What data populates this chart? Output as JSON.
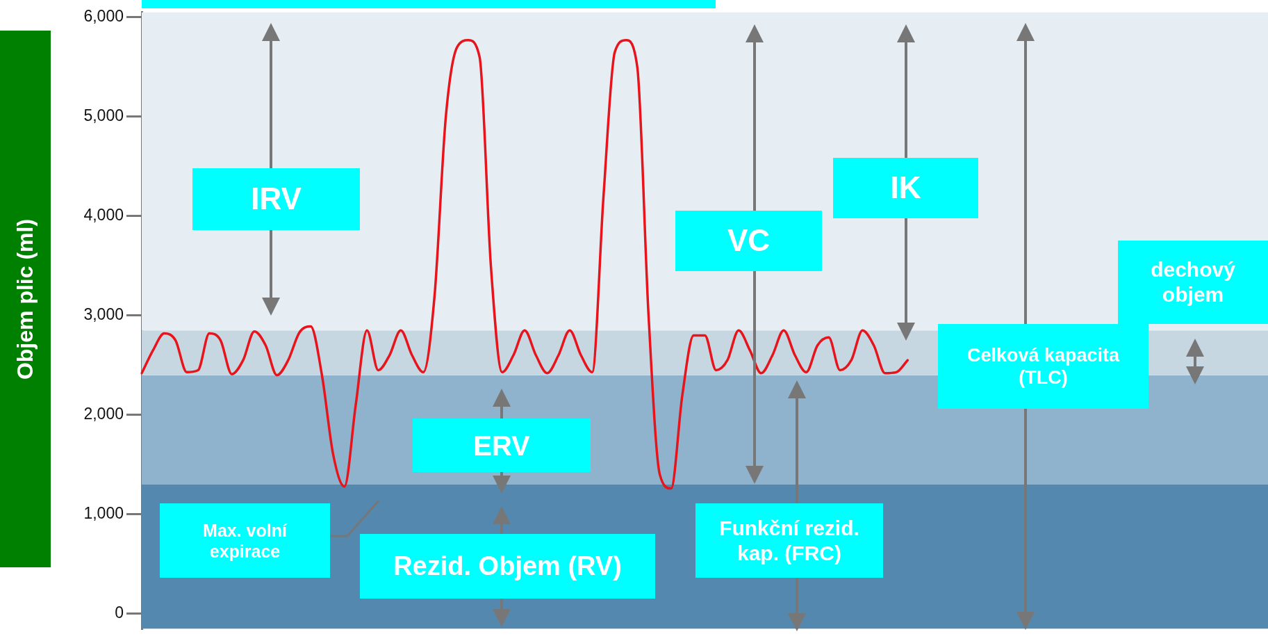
{
  "chart_data": {
    "type": "line",
    "ylabel": "Objem plic (ml)",
    "categories": [
      null,
      null,
      null,
      null,
      null,
      null,
      null,
      null,
      null,
      null,
      null,
      null,
      null,
      null,
      null,
      null,
      null,
      null,
      null,
      null,
      null,
      null,
      null,
      null,
      null,
      null,
      null,
      null,
      null,
      null,
      null,
      null,
      null,
      null,
      null,
      null,
      null,
      null,
      null,
      null,
      null,
      null,
      null,
      null,
      null,
      null,
      null,
      null,
      null,
      null,
      null,
      null,
      null,
      null,
      null,
      null,
      null,
      null,
      null,
      null,
      null,
      null,
      null,
      null,
      null,
      null,
      null,
      null,
      null,
      null,
      null,
      null,
      null,
      null,
      null,
      null,
      null,
      null,
      null,
      null,
      null,
      null,
      null,
      null,
      null,
      null,
      null,
      null,
      null,
      null,
      null,
      null,
      null,
      null,
      null,
      null,
      null,
      null,
      null,
      null,
      null
    ],
    "series": [
      {
        "color": "#e8141b",
        "values": [
          2420,
          2650,
          2820,
          2750,
          2430,
          2450,
          2820,
          2750,
          2410,
          2550,
          2840,
          2700,
          2400,
          2550,
          2830,
          2890,
          2400,
          1600,
          1280,
          2100,
          2850,
          2450,
          2600,
          2850,
          2600,
          2430,
          3200,
          5000,
          5700,
          5770,
          5600,
          3500,
          2430,
          2600,
          2850,
          2600,
          2420,
          2600,
          2850,
          2600,
          2430,
          4200,
          5650,
          5770,
          5500,
          3000,
          1400,
          1260,
          2200,
          2800,
          2800,
          2450,
          2550,
          2850,
          2650,
          2420,
          2600,
          2850,
          2600,
          2430,
          2700,
          2780,
          2450,
          2550,
          2850,
          2700,
          2420,
          2430,
          2550,
          null,
          null,
          null,
          null,
          null,
          null,
          null,
          null,
          null,
          null,
          null,
          null,
          null,
          null,
          null,
          null,
          null,
          null,
          null,
          null,
          null,
          null,
          null,
          null,
          null,
          null,
          null,
          null,
          null,
          null,
          null,
          null
        ]
      }
    ],
    "ylim": [
      -150,
      6050
    ],
    "yticks": [
      0,
      {
        "value": 1000,
        "label": "1,000"
      },
      {
        "value": 2000,
        "label": "2,000"
      },
      {
        "value": 3000,
        "label": "3,000"
      },
      {
        "value": 4000,
        "label": "4,000"
      },
      {
        "value": 5000,
        "label": "5,000"
      },
      {
        "value": 6000,
        "label": "6,000"
      }
    ],
    "tick_labels": "y",
    "legend": false,
    "marker": "none",
    "line_style": "solid",
    "bands": [
      {
        "axis": "y",
        "from": -150,
        "to": 1300,
        "color": "#5488ae"
      },
      {
        "axis": "y",
        "from": 1300,
        "to": 2400,
        "color": "#8fb3cc"
      },
      {
        "axis": "y",
        "from": 2400,
        "to": 2850,
        "color": "#c7d7e2"
      },
      {
        "axis": "y",
        "from": 2850,
        "to": 6050,
        "color": "#e6eef4"
      }
    ],
    "annotations": [
      "IRV",
      "IK",
      "VC",
      "dechový objem",
      "Celková kapacita (TLC)",
      "ERV",
      "Rezid. Objem (RV)",
      "Max. volní expirace",
      "Funkční rezid. kap. (FRC)"
    ]
  }
}
